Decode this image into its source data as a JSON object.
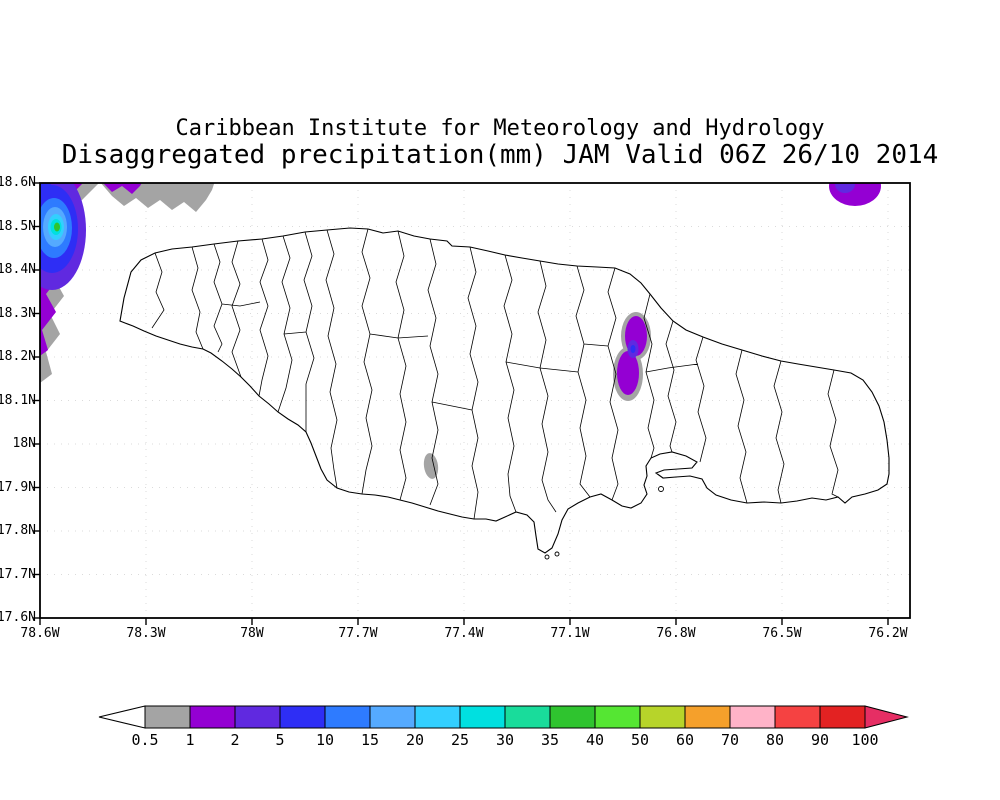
{
  "header": {
    "line1": "Caribbean Institute for Meteorology and Hydrology",
    "line2": "Disaggregated precipitation(mm) JAM Valid 06Z 26/10 2014"
  },
  "chart_data": {
    "type": "heatmap",
    "title": "Disaggregated precipitation(mm) JAM Valid 06Z 26/10 2014",
    "subtitle": "Caribbean Institute for Meteorology and Hydrology",
    "units": "mm",
    "region": "JAM (Jamaica) with parish/watershed boundaries",
    "valid_time": "06Z 26/10 2014",
    "lat_range_deg_north": [
      17.6,
      18.6
    ],
    "lon_range_deg_west": [
      78.6,
      76.2
    ],
    "yticks": [
      "18.6N",
      "18.5N",
      "18.4N",
      "18.3N",
      "18.2N",
      "18.1N",
      "18N",
      "17.9N",
      "17.8N",
      "17.7N",
      "17.6N"
    ],
    "xticks": [
      "78.6W",
      "78.3W",
      "78W",
      "77.7W",
      "77.4W",
      "77.1W",
      "76.8W",
      "76.5W",
      "76.2W"
    ],
    "grid": "dotted",
    "legend_position": "bottom horizontal colorbar",
    "features": [
      {
        "name": "offshore-northwest-maximum",
        "approx_lon": "78.5W",
        "approx_lat": "18.5N",
        "peak_mm": "35-40",
        "extent": "large shaded area off the NW coast clipped by map edge; concentric bands 0.5 to 35+ mm with small green core near 78.53W 18.50N"
      },
      {
        "name": "northeast-offshore-cell",
        "approx_lon": "76.35W",
        "approx_lat": "18.6N",
        "peak_mm": "2-5",
        "extent": "small purple cell clipped at top-right map edge"
      },
      {
        "name": "inland-eastern-cell",
        "approx_lon": "76.9W",
        "approx_lat": "18.2N",
        "peak_mm": "5-10",
        "extent": "elongated N-S purple cell (~18.1N to 18.3N) with gray rim over eastern interior"
      },
      {
        "name": "south-central-trace",
        "approx_lon": "77.52W",
        "approx_lat": "17.94N",
        "peak_mm": "0.5-1",
        "extent": "tiny gray spot inland of south coast"
      }
    ]
  },
  "colorbar": {
    "labels": [
      "0.5",
      "1",
      "2",
      "5",
      "10",
      "15",
      "20",
      "25",
      "30",
      "35",
      "40",
      "50",
      "60",
      "70",
      "80",
      "90",
      "100"
    ],
    "below_color": "#ffffff",
    "colors": [
      "#a4a4a4",
      "#9400d3",
      "#6029e0",
      "#2e2ef5",
      "#2e7bff",
      "#55aaff",
      "#33cfff",
      "#00e0e0",
      "#19dc9b",
      "#2fc42f",
      "#55e633",
      "#b7d42a",
      "#f5a02b",
      "#ffb3c8",
      "#f54242",
      "#e32222"
    ],
    "above_color": "#e62e64"
  }
}
